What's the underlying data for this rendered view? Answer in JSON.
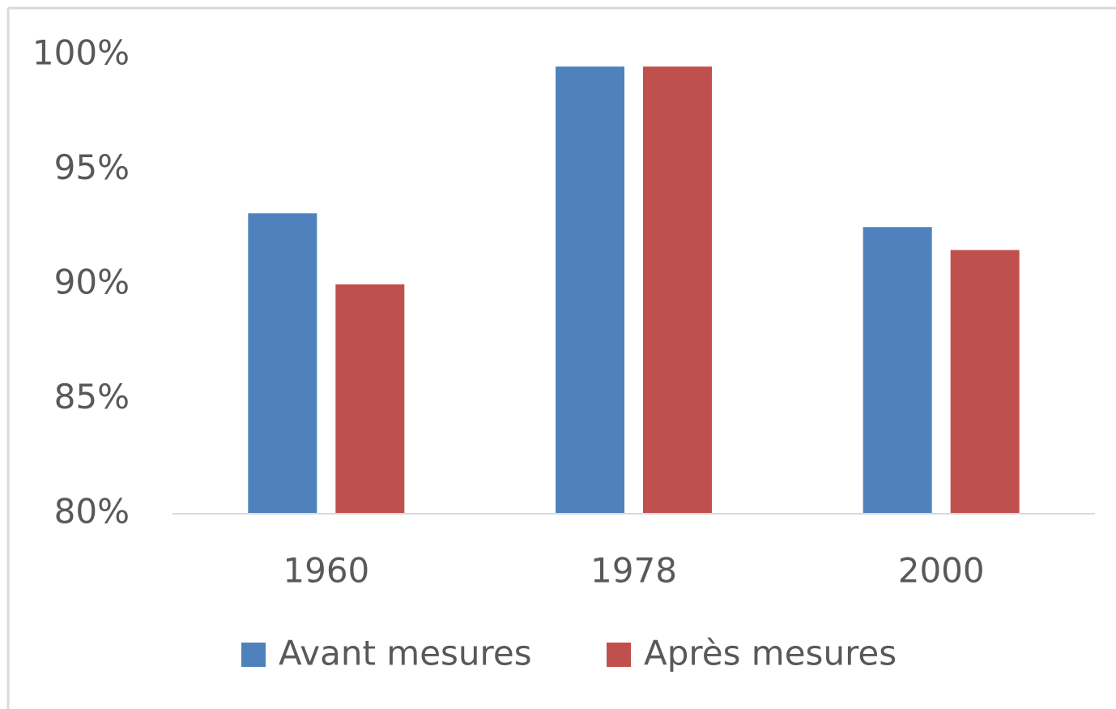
{
  "chart_data": {
    "type": "bar",
    "categories": [
      "1960",
      "1978",
      "2000"
    ],
    "series": [
      {
        "name": "Avant mesures",
        "color": "#4f81bd",
        "values": [
          93.1,
          99.5,
          92.5
        ]
      },
      {
        "name": "Après mesures",
        "color": "#c0504d",
        "values": [
          90.0,
          99.5,
          91.5
        ]
      }
    ],
    "ylim": [
      80,
      100
    ],
    "yticks": [
      {
        "value": 80,
        "label": "80%"
      },
      {
        "value": 85,
        "label": "85%"
      },
      {
        "value": 90,
        "label": "90%"
      },
      {
        "value": 95,
        "label": "95%"
      },
      {
        "value": 100,
        "label": "100%"
      }
    ],
    "grid": false,
    "legend": "bottom"
  }
}
